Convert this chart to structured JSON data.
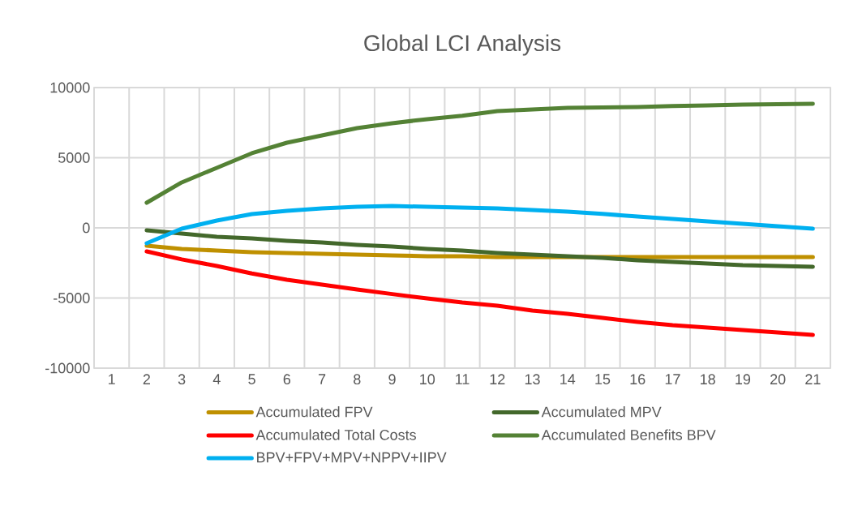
{
  "chart_data": {
    "type": "line",
    "title": "Global LCI Analysis",
    "categories": [
      "1",
      "2",
      "3",
      "4",
      "5",
      "6",
      "7",
      "8",
      "9",
      "10",
      "11",
      "12",
      "13",
      "14",
      "15",
      "16",
      "17",
      "18",
      "19",
      "20",
      "21"
    ],
    "series": [
      {
        "name": "Accumulated FPV",
        "color": "#bf9000",
        "values": [
          null,
          -1270,
          -1500,
          -1620,
          -1730,
          -1790,
          -1850,
          -1910,
          -1970,
          -2020,
          -2020,
          -2080,
          -2080,
          -2080,
          -2080,
          -2080,
          -2080,
          -2080,
          -2080,
          -2080,
          -2080
        ]
      },
      {
        "name": "Accumulated MPV",
        "color": "#43682b",
        "values": [
          null,
          -170,
          -400,
          -640,
          -750,
          -920,
          -1040,
          -1210,
          -1330,
          -1500,
          -1620,
          -1790,
          -1910,
          -2020,
          -2140,
          -2310,
          -2430,
          -2540,
          -2660,
          -2720,
          -2770
        ]
      },
      {
        "name": "Accumulated Total Costs",
        "color": "#ff0000",
        "values": [
          null,
          -1680,
          -2250,
          -2720,
          -3250,
          -3700,
          -4050,
          -4390,
          -4720,
          -5030,
          -5320,
          -5550,
          -5900,
          -6130,
          -6420,
          -6700,
          -6940,
          -7110,
          -7280,
          -7460,
          -7630
        ]
      },
      {
        "name": "Accumulated Benefits BPV",
        "color": "#548235",
        "values": [
          null,
          1790,
          3240,
          4280,
          5320,
          6070,
          6590,
          7110,
          7460,
          7750,
          7990,
          8320,
          8440,
          8550,
          8580,
          8610,
          8680,
          8730,
          8780,
          8810,
          8840
        ]
      },
      {
        "name": "BPV+FPV+MPV+NPPV+IIPV",
        "color": "#00b0f0",
        "values": [
          null,
          -1100,
          -60,
          520,
          980,
          1210,
          1390,
          1500,
          1560,
          1500,
          1450,
          1390,
          1270,
          1160,
          990,
          810,
          640,
          460,
          290,
          120,
          -60
        ]
      }
    ],
    "ylim": [
      -10000,
      10000
    ],
    "yticks": [
      -10000,
      -5000,
      0,
      5000,
      10000
    ],
    "grid": true,
    "legend": "bottom",
    "marker": "none",
    "line_style": "solid"
  }
}
